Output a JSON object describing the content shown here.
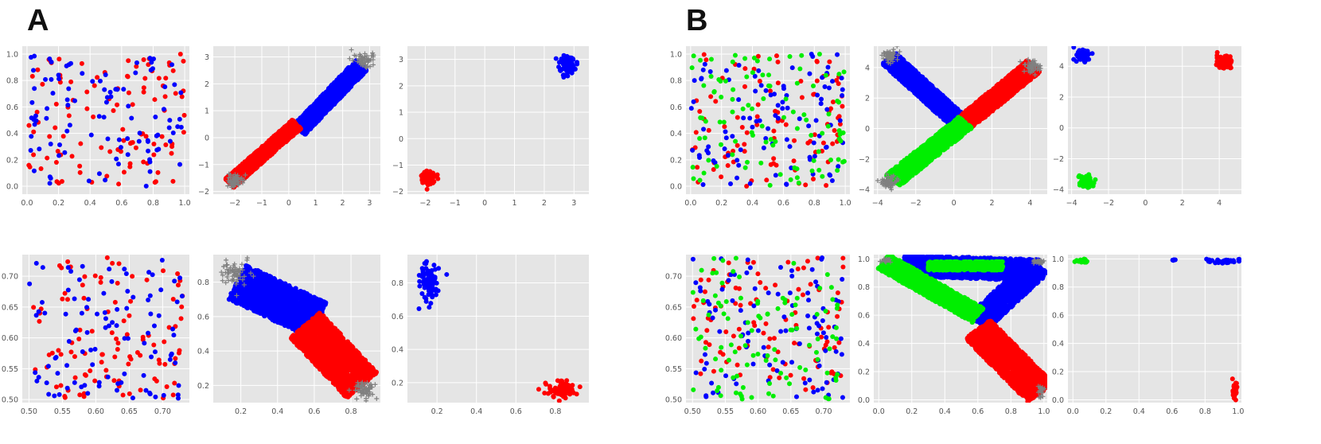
{
  "panels": [
    {
      "label": "A"
    },
    {
      "label": "B"
    }
  ],
  "colors": {
    "background": "#e5e5e5",
    "grid": "#ffffff",
    "red": "#ff0000",
    "blue": "#0000ff",
    "green": "#00ee00",
    "gray": "#808080"
  },
  "chart_data": [
    {
      "id": "A-r1c1",
      "type": "scatter",
      "panel": "A",
      "row": 1,
      "col": 1,
      "xlim": [
        -0.03,
        1.03
      ],
      "ylim": [
        -0.06,
        1.06
      ],
      "xticks": [
        0.0,
        0.2,
        0.4,
        0.6,
        0.8,
        1.0
      ],
      "xtick_labels": [
        "0.0",
        "0.2",
        "0.4",
        "0.6",
        "0.8",
        "1.0"
      ],
      "yticks": [
        0.0,
        0.2,
        0.4,
        0.6,
        0.8,
        1.0
      ],
      "ytick_labels": [
        "0.0",
        "0.2",
        "0.4",
        "0.6",
        "0.8",
        "1.0"
      ],
      "grid": true,
      "series": [
        {
          "color": "red",
          "kind": "random",
          "n": 110,
          "x": [
            0.0,
            1.0
          ],
          "y": [
            0.0,
            1.0
          ],
          "seed": 11
        },
        {
          "color": "blue",
          "kind": "random",
          "n": 100,
          "x": [
            0.0,
            1.0
          ],
          "y": [
            0.0,
            1.0
          ],
          "seed": 12
        }
      ]
    },
    {
      "id": "A-r1c2",
      "type": "scatter",
      "panel": "A",
      "row": 1,
      "col": 2,
      "xlim": [
        -2.8,
        3.4
      ],
      "ylim": [
        -2.1,
        3.4
      ],
      "xticks": [
        -2,
        -1,
        0,
        1,
        2,
        3
      ],
      "xtick_labels": [
        "−2",
        "−1",
        "0",
        "1",
        "2",
        "3"
      ],
      "yticks": [
        -2,
        -1,
        0,
        1,
        2,
        3
      ],
      "ytick_labels": [
        "−2",
        "−1",
        "0",
        "1",
        "2",
        "3"
      ],
      "grid": true,
      "series": [
        {
          "color": "blue",
          "kind": "band",
          "n": 1500,
          "from": [
            0.4,
            0.3
          ],
          "to": [
            2.7,
            2.7
          ],
          "spread": 0.55,
          "seed": 21
        },
        {
          "color": "red",
          "kind": "band",
          "n": 1500,
          "from": [
            -2.2,
            -1.7
          ],
          "to": [
            0.3,
            0.5
          ],
          "spread": 0.45,
          "seed": 22
        },
        {
          "color": "gray",
          "kind": "blob",
          "marker": "plus",
          "n": 60,
          "center": [
            2.8,
            2.9
          ],
          "spread": [
            0.4,
            0.3
          ],
          "seed": 23
        },
        {
          "color": "gray",
          "kind": "blob",
          "marker": "plus",
          "n": 60,
          "center": [
            -2.0,
            -1.6
          ],
          "spread": [
            0.35,
            0.3
          ],
          "seed": 24
        }
      ]
    },
    {
      "id": "A-r1c3",
      "type": "scatter",
      "panel": "A",
      "row": 1,
      "col": 3,
      "xlim": [
        -2.6,
        3.5
      ],
      "ylim": [
        -2.1,
        3.5
      ],
      "xticks": [
        -2,
        -1,
        0,
        1,
        2,
        3
      ],
      "xtick_labels": [
        "−2",
        "−1",
        "0",
        "1",
        "2",
        "3"
      ],
      "yticks": [
        -2,
        -1,
        0,
        1,
        2,
        3
      ],
      "ytick_labels": [
        "−2",
        "−1",
        "0",
        "1",
        "2",
        "3"
      ],
      "grid": true,
      "series": [
        {
          "color": "blue",
          "kind": "blob",
          "n": 90,
          "center": [
            2.8,
            2.8
          ],
          "spread": [
            0.3,
            0.35
          ],
          "seed": 31
        },
        {
          "color": "red",
          "kind": "blob",
          "n": 90,
          "center": [
            -1.9,
            -1.5
          ],
          "spread": [
            0.3,
            0.3
          ],
          "seed": 32
        }
      ]
    },
    {
      "id": "A-r2c1",
      "type": "scatter",
      "panel": "A",
      "row": 2,
      "col": 1,
      "xlim": [
        0.49,
        0.74
      ],
      "ylim": [
        0.495,
        0.735
      ],
      "xticks": [
        0.5,
        0.55,
        0.6,
        0.65,
        0.7
      ],
      "xtick_labels": [
        "0.50",
        "0.55",
        "0.60",
        "0.65",
        "0.70"
      ],
      "yticks": [
        0.5,
        0.55,
        0.6,
        0.65,
        0.7
      ],
      "ytick_labels": [
        "0.50",
        "0.55",
        "0.60",
        "0.65",
        "0.70"
      ],
      "grid": true,
      "series": [
        {
          "color": "red",
          "kind": "random",
          "n": 105,
          "x": [
            0.5,
            0.73
          ],
          "y": [
            0.5,
            0.73
          ],
          "seed": 41
        },
        {
          "color": "blue",
          "kind": "random",
          "n": 100,
          "x": [
            0.5,
            0.73
          ],
          "y": [
            0.5,
            0.73
          ],
          "seed": 42
        }
      ]
    },
    {
      "id": "A-r2c2",
      "type": "scatter",
      "panel": "A",
      "row": 2,
      "col": 2,
      "xlim": [
        0.05,
        0.96
      ],
      "ylim": [
        0.1,
        0.96
      ],
      "xticks": [
        0.2,
        0.4,
        0.6,
        0.8
      ],
      "xtick_labels": [
        "0.2",
        "0.4",
        "0.6",
        "0.8"
      ],
      "yticks": [
        0.2,
        0.4,
        0.6,
        0.8
      ],
      "ytick_labels": [
        "0.2",
        "0.4",
        "0.6",
        "0.8"
      ],
      "grid": true,
      "series": [
        {
          "color": "blue",
          "kind": "band",
          "n": 1600,
          "from": [
            0.18,
            0.8
          ],
          "to": [
            0.62,
            0.58
          ],
          "spread": 0.22,
          "seed": 51
        },
        {
          "color": "red",
          "kind": "band",
          "n": 1600,
          "from": [
            0.55,
            0.55
          ],
          "to": [
            0.86,
            0.2
          ],
          "spread": 0.22,
          "seed": 52
        },
        {
          "color": "gray",
          "kind": "blob",
          "marker": "plus",
          "n": 60,
          "center": [
            0.17,
            0.85
          ],
          "spread": [
            0.08,
            0.08
          ],
          "seed": 53
        },
        {
          "color": "gray",
          "kind": "blob",
          "marker": "plus",
          "n": 60,
          "center": [
            0.87,
            0.17
          ],
          "spread": [
            0.07,
            0.06
          ],
          "seed": 54
        }
      ]
    },
    {
      "id": "A-r2c3",
      "type": "scatter",
      "panel": "A",
      "row": 2,
      "col": 3,
      "xlim": [
        0.05,
        0.97
      ],
      "ylim": [
        0.08,
        0.97
      ],
      "xticks": [
        0.2,
        0.4,
        0.6,
        0.8
      ],
      "xtick_labels": [
        "0.2",
        "0.4",
        "0.6",
        "0.8"
      ],
      "yticks": [
        0.2,
        0.4,
        0.6,
        0.8
      ],
      "ytick_labels": [
        "0.2",
        "0.4",
        "0.6",
        "0.8"
      ],
      "grid": true,
      "series": [
        {
          "color": "blue",
          "kind": "blob",
          "n": 80,
          "center": [
            0.16,
            0.8
          ],
          "spread": [
            0.06,
            0.13
          ],
          "seed": 61
        },
        {
          "color": "red",
          "kind": "blob",
          "n": 80,
          "center": [
            0.83,
            0.16
          ],
          "spread": [
            0.09,
            0.06
          ],
          "seed": 62
        }
      ]
    },
    {
      "id": "B-r1c1",
      "type": "scatter",
      "panel": "B",
      "row": 1,
      "col": 1,
      "xlim": [
        -0.03,
        1.03
      ],
      "ylim": [
        -0.06,
        1.06
      ],
      "xticks": [
        0.0,
        0.2,
        0.4,
        0.6,
        0.8,
        1.0
      ],
      "xtick_labels": [
        "0.0",
        "0.2",
        "0.4",
        "0.6",
        "0.8",
        "1.0"
      ],
      "yticks": [
        0.0,
        0.2,
        0.4,
        0.6,
        0.8,
        1.0
      ],
      "ytick_labels": [
        "0.0",
        "0.2",
        "0.4",
        "0.6",
        "0.8",
        "1.0"
      ],
      "grid": true,
      "series": [
        {
          "color": "red",
          "kind": "random",
          "n": 100,
          "x": [
            0.0,
            1.0
          ],
          "y": [
            0.0,
            1.0
          ],
          "seed": 71
        },
        {
          "color": "blue",
          "kind": "random",
          "n": 100,
          "x": [
            0.0,
            1.0
          ],
          "y": [
            0.0,
            1.0
          ],
          "seed": 72
        },
        {
          "color": "green",
          "kind": "random",
          "n": 100,
          "x": [
            0.0,
            1.0
          ],
          "y": [
            0.0,
            1.0
          ],
          "seed": 73
        }
      ]
    },
    {
      "id": "B-r1c2",
      "type": "scatter",
      "panel": "B",
      "row": 1,
      "col": 2,
      "xlim": [
        -4.2,
        4.9
      ],
      "ylim": [
        -4.3,
        5.4
      ],
      "xticks": [
        -4,
        -2,
        0,
        2,
        4
      ],
      "xtick_labels": [
        "−4",
        "−2",
        "0",
        "2",
        "4"
      ],
      "yticks": [
        -4,
        -2,
        0,
        2,
        4
      ],
      "ytick_labels": [
        "−4",
        "−2",
        "0",
        "2",
        "4"
      ],
      "grid": true,
      "series": [
        {
          "color": "blue",
          "kind": "band",
          "n": 1300,
          "from": [
            -3.4,
            4.6
          ],
          "to": [
            0.3,
            0.4
          ],
          "spread": 1.0,
          "seed": 81
        },
        {
          "color": "red",
          "kind": "band",
          "n": 1300,
          "from": [
            0.6,
            0.4
          ],
          "to": [
            4.2,
            4.1
          ],
          "spread": 1.0,
          "seed": 82
        },
        {
          "color": "green",
          "kind": "band",
          "n": 1300,
          "from": [
            -3.2,
            -3.4
          ],
          "to": [
            0.6,
            0.4
          ],
          "spread": 1.0,
          "seed": 83
        },
        {
          "color": "gray",
          "kind": "blob",
          "marker": "plus",
          "n": 55,
          "center": [
            -3.4,
            4.7
          ],
          "spread": [
            0.5,
            0.5
          ],
          "seed": 84
        },
        {
          "color": "gray",
          "kind": "blob",
          "marker": "plus",
          "n": 55,
          "center": [
            4.2,
            4.1
          ],
          "spread": [
            0.5,
            0.5
          ],
          "seed": 85
        },
        {
          "color": "gray",
          "kind": "blob",
          "marker": "plus",
          "n": 55,
          "center": [
            -3.4,
            -3.5
          ],
          "spread": [
            0.5,
            0.5
          ],
          "seed": 86
        }
      ]
    },
    {
      "id": "B-r1c3",
      "type": "scatter",
      "panel": "B",
      "row": 1,
      "col": 3,
      "xlim": [
        -4.2,
        5.2
      ],
      "ylim": [
        -4.3,
        5.3
      ],
      "xticks": [
        -4,
        -2,
        0,
        2,
        4
      ],
      "xtick_labels": [
        "−4",
        "−2",
        "0",
        "2",
        "4"
      ],
      "yticks": [
        -4,
        -2,
        0,
        2,
        4
      ],
      "ytick_labels": [
        "−4",
        "−2",
        "0",
        "2",
        "4"
      ],
      "grid": true,
      "series": [
        {
          "color": "blue",
          "kind": "blob",
          "n": 80,
          "center": [
            -3.4,
            4.7
          ],
          "spread": [
            0.45,
            0.4
          ],
          "seed": 91
        },
        {
          "color": "red",
          "kind": "blob",
          "n": 80,
          "center": [
            4.3,
            4.3
          ],
          "spread": [
            0.45,
            0.45
          ],
          "seed": 92
        },
        {
          "color": "green",
          "kind": "blob",
          "n": 80,
          "center": [
            -3.2,
            -3.5
          ],
          "spread": [
            0.4,
            0.45
          ],
          "seed": 93
        }
      ]
    },
    {
      "id": "B-r2c1",
      "type": "scatter",
      "panel": "B",
      "row": 2,
      "col": 1,
      "xlim": [
        0.49,
        0.74
      ],
      "ylim": [
        0.495,
        0.735
      ],
      "xticks": [
        0.5,
        0.55,
        0.6,
        0.65,
        0.7
      ],
      "xtick_labels": [
        "0.50",
        "0.55",
        "0.60",
        "0.65",
        "0.70"
      ],
      "yticks": [
        0.5,
        0.55,
        0.6,
        0.65,
        0.7
      ],
      "ytick_labels": [
        "0.50",
        "0.55",
        "0.60",
        "0.65",
        "0.70"
      ],
      "grid": true,
      "series": [
        {
          "color": "red",
          "kind": "random",
          "n": 100,
          "x": [
            0.5,
            0.73
          ],
          "y": [
            0.5,
            0.73
          ],
          "seed": 101
        },
        {
          "color": "blue",
          "kind": "random",
          "n": 100,
          "x": [
            0.5,
            0.73
          ],
          "y": [
            0.5,
            0.73
          ],
          "seed": 102
        },
        {
          "color": "green",
          "kind": "random",
          "n": 100,
          "x": [
            0.5,
            0.73
          ],
          "y": [
            0.5,
            0.73
          ],
          "seed": 103
        }
      ]
    },
    {
      "id": "B-r2c2",
      "type": "scatter",
      "panel": "B",
      "row": 2,
      "col": 2,
      "xlim": [
        -0.03,
        1.02
      ],
      "ylim": [
        -0.02,
        1.03
      ],
      "xticks": [
        0.0,
        0.2,
        0.4,
        0.6,
        0.8,
        1.0
      ],
      "xtick_labels": [
        "0.0",
        "0.2",
        "0.4",
        "0.6",
        "0.8",
        "1.0"
      ],
      "yticks": [
        0.0,
        0.2,
        0.4,
        0.6,
        0.8,
        1.0
      ],
      "ytick_labels": [
        "0.0",
        "0.2",
        "0.4",
        "0.6",
        "0.8",
        "1.0"
      ],
      "grid": true,
      "series": [
        {
          "color": "blue",
          "kind": "band",
          "n": 1300,
          "from": [
            0.15,
            0.95
          ],
          "to": [
            0.97,
            0.92
          ],
          "spread": 0.15,
          "seed": 111
        },
        {
          "color": "blue",
          "kind": "band",
          "n": 900,
          "from": [
            0.6,
            0.55
          ],
          "to": [
            0.97,
            0.95
          ],
          "spread": 0.15,
          "seed": 112
        },
        {
          "color": "green",
          "kind": "band",
          "n": 1300,
          "from": [
            0.03,
            0.98
          ],
          "to": [
            0.6,
            0.6
          ],
          "spread": 0.12,
          "seed": 113
        },
        {
          "color": "green",
          "kind": "band",
          "n": 700,
          "from": [
            0.3,
            0.95
          ],
          "to": [
            0.75,
            0.95
          ],
          "spread": 0.06,
          "seed": 114
        },
        {
          "color": "red",
          "kind": "band",
          "n": 1500,
          "from": [
            0.6,
            0.5
          ],
          "to": [
            0.98,
            0.05
          ],
          "spread": 0.2,
          "seed": 115
        },
        {
          "color": "gray",
          "kind": "blob",
          "marker": "plus",
          "n": 25,
          "center": [
            0.04,
            0.99
          ],
          "spread": [
            0.04,
            0.015
          ],
          "seed": 116
        },
        {
          "color": "gray",
          "kind": "blob",
          "marker": "plus",
          "n": 25,
          "center": [
            0.97,
            0.98
          ],
          "spread": [
            0.04,
            0.015
          ],
          "seed": 117
        },
        {
          "color": "gray",
          "kind": "blob",
          "marker": "plus",
          "n": 25,
          "center": [
            0.98,
            0.06
          ],
          "spread": [
            0.02,
            0.06
          ],
          "seed": 118
        }
      ]
    },
    {
      "id": "B-r2c3",
      "type": "scatter",
      "panel": "B",
      "row": 2,
      "col": 3,
      "xlim": [
        -0.03,
        1.02
      ],
      "ylim": [
        -0.02,
        1.03
      ],
      "xticks": [
        0.0,
        0.2,
        0.4,
        0.6,
        0.8,
        1.0
      ],
      "xtick_labels": [
        "0.0",
        "0.2",
        "0.4",
        "0.6",
        "0.8",
        "1.0"
      ],
      "yticks": [
        0.0,
        0.2,
        0.4,
        0.6,
        0.8,
        1.0
      ],
      "ytick_labels": [
        "0.0",
        "0.2",
        "0.4",
        "0.6",
        "0.8",
        "1.0"
      ],
      "grid": true,
      "series": [
        {
          "color": "green",
          "kind": "blob",
          "n": 35,
          "center": [
            0.06,
            0.985
          ],
          "spread": [
            0.04,
            0.012
          ],
          "seed": 121
        },
        {
          "color": "blue",
          "kind": "blob",
          "n": 45,
          "center": [
            0.9,
            0.985
          ],
          "spread": [
            0.12,
            0.015
          ],
          "seed": 122
        },
        {
          "color": "blue",
          "kind": "blob",
          "n": 4,
          "center": [
            0.62,
            0.99
          ],
          "spread": [
            0.04,
            0.01
          ],
          "seed": 123
        },
        {
          "color": "red",
          "kind": "blob",
          "n": 35,
          "center": [
            0.98,
            0.07
          ],
          "spread": [
            0.015,
            0.08
          ],
          "seed": 124
        }
      ]
    }
  ]
}
